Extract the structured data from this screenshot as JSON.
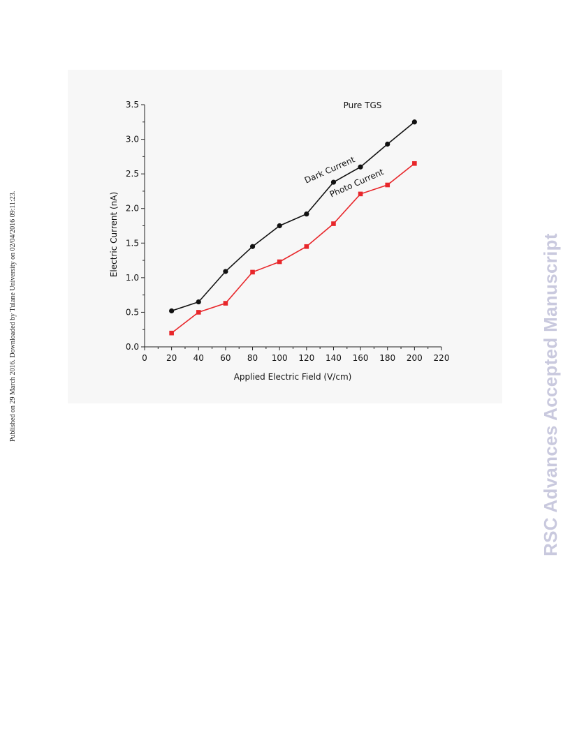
{
  "side_note": "Published on 29 March 2016. Downloaded by Tulane University on 02/04/2016 09:11:23.",
  "watermark": "RSC Advances Accepted Manuscript",
  "chart_data": {
    "type": "line",
    "title": "Pure TGS",
    "xlabel": "Applied Electric Field (V/cm)",
    "ylabel": "Electric Current (nA)",
    "xlim": [
      0,
      220
    ],
    "ylim": [
      0,
      3.5
    ],
    "xticks": [
      0,
      20,
      40,
      60,
      80,
      100,
      120,
      140,
      160,
      180,
      200,
      220
    ],
    "yticks": [
      "0.0",
      "0.5",
      "1.0",
      "1.5",
      "2.0",
      "2.5",
      "3.0",
      "3.5"
    ],
    "x": [
      20,
      40,
      60,
      80,
      100,
      120,
      140,
      160,
      180,
      200
    ],
    "series": [
      {
        "name": "Dark Current",
        "color": "#111111",
        "marker": "circle",
        "values": [
          0.52,
          0.65,
          1.09,
          1.45,
          1.75,
          1.92,
          2.38,
          2.6,
          2.93,
          3.25
        ],
        "annotation": {
          "text": "Dark Current",
          "x": 138,
          "y": 2.52
        }
      },
      {
        "name": "Photo Current",
        "color": "#e8262a",
        "marker": "square",
        "values": [
          0.2,
          0.5,
          0.63,
          1.08,
          1.23,
          1.45,
          1.78,
          2.21,
          2.34,
          2.65
        ],
        "annotation": {
          "text": "Photo Current",
          "x": 158,
          "y": 2.33
        }
      }
    ]
  }
}
